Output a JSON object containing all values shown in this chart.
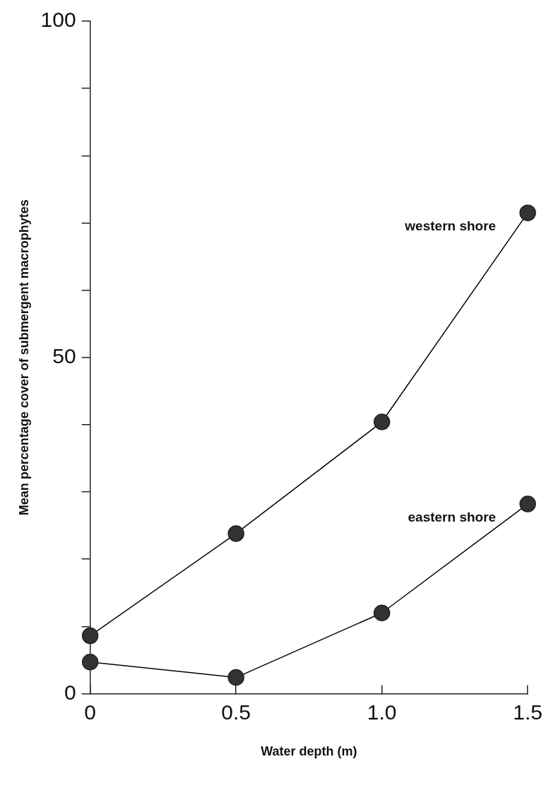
{
  "chart_data": {
    "type": "line",
    "xlabel": "Water depth (m)",
    "ylabel": "Mean percentage cover of submergent macrophytes",
    "x": [
      0,
      0.5,
      1.0,
      1.5
    ],
    "series": [
      {
        "name": "western shore",
        "color": "#333333",
        "values": [
          8.6,
          23.8,
          40.4,
          71.5
        ]
      },
      {
        "name": "eastern shore",
        "color": "#333333",
        "values": [
          4.7,
          2.4,
          12.0,
          28.2
        ]
      }
    ],
    "xlim": [
      0,
      1.5
    ],
    "xticks": [
      0,
      {
        "value": 0.5,
        "label": "0.5"
      },
      {
        "value": 1.0,
        "label": "1.0"
      },
      {
        "value": 1.5,
        "label": "1.5"
      }
    ],
    "ylim": [
      0,
      100
    ],
    "yticks": [
      0,
      {
        "value": 10,
        "label": null
      },
      {
        "value": 20,
        "label": null
      },
      {
        "value": 30,
        "label": null
      },
      {
        "value": 40,
        "label": null
      },
      50,
      {
        "value": 60,
        "label": null
      },
      {
        "value": 70,
        "label": null
      },
      {
        "value": 80,
        "label": null
      },
      {
        "value": 90,
        "label": null
      },
      100
    ],
    "grid": false,
    "legend": false,
    "marker": "circle",
    "line_style": "solid"
  }
}
